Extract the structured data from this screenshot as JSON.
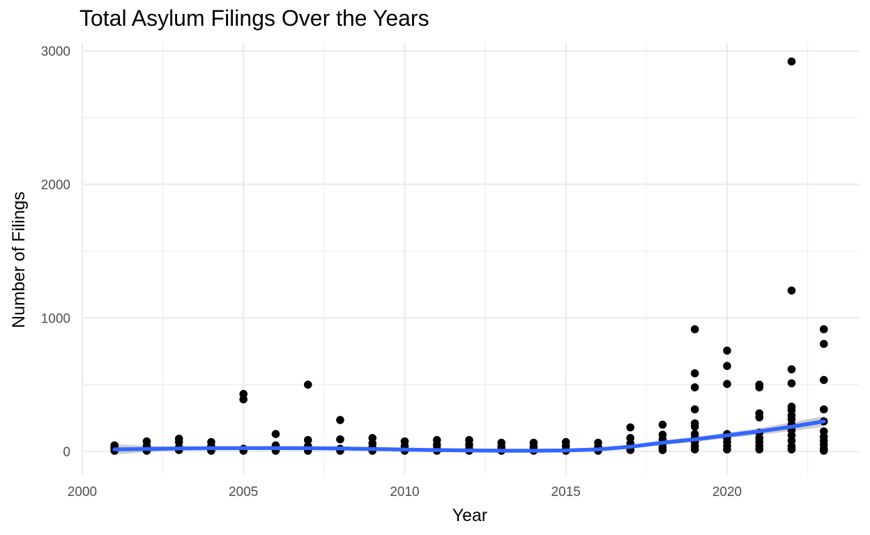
{
  "chart_data": {
    "type": "scatter",
    "title": "Total Asylum Filings Over the Years",
    "xlabel": "Year",
    "ylabel": "Number of Filings",
    "xlim": [
      2000,
      2024
    ],
    "ylim": [
      -160,
      3050
    ],
    "x_ticks": [
      2000,
      2005,
      2010,
      2015,
      2020
    ],
    "y_ticks": [
      0,
      1000,
      2000,
      3000
    ],
    "grid": true,
    "colors": {
      "points": "#000000",
      "smooth_line": "#3366FF",
      "confidence_band": "#bdbdbd",
      "grid": "#ebebeb"
    },
    "points": [
      {
        "x": 2001,
        "y": 45
      },
      {
        "x": 2001,
        "y": 30
      },
      {
        "x": 2001,
        "y": 15
      },
      {
        "x": 2001,
        "y": 5
      },
      {
        "x": 2002,
        "y": 75
      },
      {
        "x": 2002,
        "y": 40
      },
      {
        "x": 2002,
        "y": 20
      },
      {
        "x": 2002,
        "y": 5
      },
      {
        "x": 2003,
        "y": 95
      },
      {
        "x": 2003,
        "y": 70
      },
      {
        "x": 2003,
        "y": 30
      },
      {
        "x": 2003,
        "y": 10
      },
      {
        "x": 2004,
        "y": 70
      },
      {
        "x": 2004,
        "y": 40
      },
      {
        "x": 2004,
        "y": 15
      },
      {
        "x": 2004,
        "y": 5
      },
      {
        "x": 2005,
        "y": 430
      },
      {
        "x": 2005,
        "y": 390
      },
      {
        "x": 2005,
        "y": 20
      },
      {
        "x": 2005,
        "y": 5
      },
      {
        "x": 2006,
        "y": 130
      },
      {
        "x": 2006,
        "y": 45
      },
      {
        "x": 2006,
        "y": 20
      },
      {
        "x": 2006,
        "y": 5
      },
      {
        "x": 2007,
        "y": 500
      },
      {
        "x": 2007,
        "y": 85
      },
      {
        "x": 2007,
        "y": 40
      },
      {
        "x": 2007,
        "y": 15
      },
      {
        "x": 2007,
        "y": 5
      },
      {
        "x": 2008,
        "y": 235
      },
      {
        "x": 2008,
        "y": 90
      },
      {
        "x": 2008,
        "y": 20
      },
      {
        "x": 2008,
        "y": 5
      },
      {
        "x": 2009,
        "y": 100
      },
      {
        "x": 2009,
        "y": 60
      },
      {
        "x": 2009,
        "y": 30
      },
      {
        "x": 2009,
        "y": 5
      },
      {
        "x": 2010,
        "y": 75
      },
      {
        "x": 2010,
        "y": 40
      },
      {
        "x": 2010,
        "y": 15
      },
      {
        "x": 2010,
        "y": 5
      },
      {
        "x": 2011,
        "y": 85
      },
      {
        "x": 2011,
        "y": 50
      },
      {
        "x": 2011,
        "y": 20
      },
      {
        "x": 2011,
        "y": 5
      },
      {
        "x": 2012,
        "y": 85
      },
      {
        "x": 2012,
        "y": 50
      },
      {
        "x": 2012,
        "y": 20
      },
      {
        "x": 2012,
        "y": 5
      },
      {
        "x": 2013,
        "y": 65
      },
      {
        "x": 2013,
        "y": 35
      },
      {
        "x": 2013,
        "y": 15
      },
      {
        "x": 2013,
        "y": 5
      },
      {
        "x": 2014,
        "y": 65
      },
      {
        "x": 2014,
        "y": 35
      },
      {
        "x": 2014,
        "y": 15
      },
      {
        "x": 2014,
        "y": 5
      },
      {
        "x": 2015,
        "y": 70
      },
      {
        "x": 2015,
        "y": 40
      },
      {
        "x": 2015,
        "y": 15
      },
      {
        "x": 2015,
        "y": 5
      },
      {
        "x": 2016,
        "y": 65
      },
      {
        "x": 2016,
        "y": 35
      },
      {
        "x": 2016,
        "y": 15
      },
      {
        "x": 2016,
        "y": 5
      },
      {
        "x": 2017,
        "y": 180
      },
      {
        "x": 2017,
        "y": 100
      },
      {
        "x": 2017,
        "y": 60
      },
      {
        "x": 2017,
        "y": 30
      },
      {
        "x": 2017,
        "y": 10
      },
      {
        "x": 2018,
        "y": 200
      },
      {
        "x": 2018,
        "y": 125
      },
      {
        "x": 2018,
        "y": 90
      },
      {
        "x": 2018,
        "y": 60
      },
      {
        "x": 2018,
        "y": 30
      },
      {
        "x": 2018,
        "y": 10
      },
      {
        "x": 2019,
        "y": 915
      },
      {
        "x": 2019,
        "y": 585
      },
      {
        "x": 2019,
        "y": 480
      },
      {
        "x": 2019,
        "y": 315
      },
      {
        "x": 2019,
        "y": 210
      },
      {
        "x": 2019,
        "y": 185
      },
      {
        "x": 2019,
        "y": 130
      },
      {
        "x": 2019,
        "y": 100
      },
      {
        "x": 2019,
        "y": 70
      },
      {
        "x": 2019,
        "y": 40
      },
      {
        "x": 2019,
        "y": 15
      },
      {
        "x": 2020,
        "y": 755
      },
      {
        "x": 2020,
        "y": 640
      },
      {
        "x": 2020,
        "y": 505
      },
      {
        "x": 2020,
        "y": 130
      },
      {
        "x": 2020,
        "y": 100
      },
      {
        "x": 2020,
        "y": 70
      },
      {
        "x": 2020,
        "y": 40
      },
      {
        "x": 2020,
        "y": 15
      },
      {
        "x": 2021,
        "y": 500
      },
      {
        "x": 2021,
        "y": 480
      },
      {
        "x": 2021,
        "y": 285
      },
      {
        "x": 2021,
        "y": 255
      },
      {
        "x": 2021,
        "y": 140
      },
      {
        "x": 2021,
        "y": 100
      },
      {
        "x": 2021,
        "y": 70
      },
      {
        "x": 2021,
        "y": 40
      },
      {
        "x": 2021,
        "y": 15
      },
      {
        "x": 2022,
        "y": 2920
      },
      {
        "x": 2022,
        "y": 1205
      },
      {
        "x": 2022,
        "y": 615
      },
      {
        "x": 2022,
        "y": 510
      },
      {
        "x": 2022,
        "y": 335
      },
      {
        "x": 2022,
        "y": 310
      },
      {
        "x": 2022,
        "y": 270
      },
      {
        "x": 2022,
        "y": 240
      },
      {
        "x": 2022,
        "y": 200
      },
      {
        "x": 2022,
        "y": 160
      },
      {
        "x": 2022,
        "y": 120
      },
      {
        "x": 2022,
        "y": 80
      },
      {
        "x": 2022,
        "y": 40
      },
      {
        "x": 2022,
        "y": 15
      },
      {
        "x": 2023,
        "y": 915
      },
      {
        "x": 2023,
        "y": 805
      },
      {
        "x": 2023,
        "y": 535
      },
      {
        "x": 2023,
        "y": 315
      },
      {
        "x": 2023,
        "y": 225
      },
      {
        "x": 2023,
        "y": 150
      },
      {
        "x": 2023,
        "y": 110
      },
      {
        "x": 2023,
        "y": 80
      },
      {
        "x": 2023,
        "y": 50
      },
      {
        "x": 2023,
        "y": 20
      },
      {
        "x": 2023,
        "y": 5
      }
    ],
    "smooth": {
      "x": [
        2001,
        2002,
        2003,
        2004,
        2005,
        2006,
        2007,
        2008,
        2009,
        2010,
        2011,
        2012,
        2013,
        2014,
        2015,
        2016,
        2017,
        2018,
        2019,
        2020,
        2021,
        2022,
        2023
      ],
      "y": [
        15,
        18,
        22,
        24,
        25,
        25,
        24,
        22,
        18,
        14,
        10,
        7,
        5,
        5,
        7,
        15,
        35,
        65,
        90,
        120,
        150,
        185,
        225
      ],
      "lower": [
        -25,
        -5,
        8,
        12,
        13,
        13,
        12,
        10,
        6,
        2,
        -2,
        -5,
        -7,
        -7,
        -5,
        3,
        20,
        48,
        72,
        100,
        125,
        152,
        185
      ],
      "upper": [
        55,
        41,
        36,
        36,
        37,
        37,
        36,
        34,
        30,
        26,
        22,
        19,
        17,
        17,
        19,
        27,
        50,
        82,
        108,
        140,
        175,
        218,
        265
      ]
    }
  }
}
